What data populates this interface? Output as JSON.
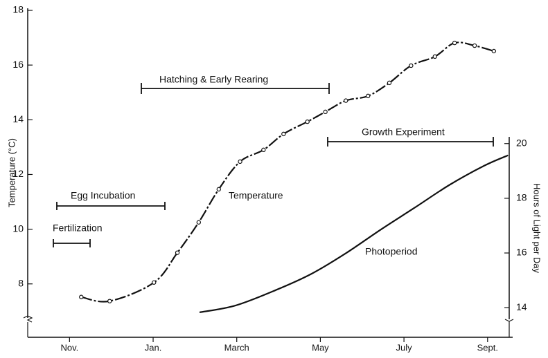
{
  "chart_data": {
    "type": "line",
    "xlim": [
      -1,
      10.6
    ],
    "xticks": [
      {
        "value": 0,
        "label": "Nov."
      },
      {
        "value": 2,
        "label": "Jan."
      },
      {
        "value": 4,
        "label": "March"
      },
      {
        "value": 6,
        "label": "May"
      },
      {
        "value": 8,
        "label": "July"
      },
      {
        "value": 10,
        "label": "Sept."
      }
    ],
    "ylabel": "Temperature (°C)",
    "ylim": [
      6.2,
      18
    ],
    "yticks": [
      8,
      10,
      12,
      14,
      16,
      18
    ],
    "y2label": "Hours of Light per Day",
    "y2lim": [
      13.07,
      24.87
    ],
    "y2ticks": [
      14,
      16,
      18,
      20
    ],
    "color": "#111111",
    "series": [
      {
        "name": "Temperature",
        "color": "#111111",
        "x": [
          0.28,
          0.96,
          2.02,
          2.58,
          3.09,
          3.57,
          4.08,
          4.64,
          5.12,
          5.69,
          6.12,
          6.61,
          7.14,
          7.65,
          8.17,
          8.74,
          9.21,
          9.69,
          10.15
        ],
        "values": [
          7.52,
          7.37,
          8.05,
          9.14,
          10.25,
          11.46,
          12.47,
          12.9,
          13.48,
          13.93,
          14.29,
          14.7,
          14.87,
          15.35,
          15.98,
          16.31,
          16.81,
          16.71,
          16.51
        ]
      },
      {
        "name": "Photoperiod",
        "color": "#111111",
        "axis": "y2",
        "x": [
          3.11,
          3.97,
          4.96,
          5.79,
          6.61,
          7.44,
          8.26,
          9.09,
          9.92,
          10.49
        ],
        "values": [
          13.83,
          14.08,
          14.66,
          15.24,
          15.99,
          16.85,
          17.66,
          18.49,
          19.19,
          19.57
        ]
      }
    ],
    "annotations": [
      "Fertilization",
      "Egg Incubation",
      "Hatching & Early Rearing",
      "Growth Experiment"
    ]
  }
}
